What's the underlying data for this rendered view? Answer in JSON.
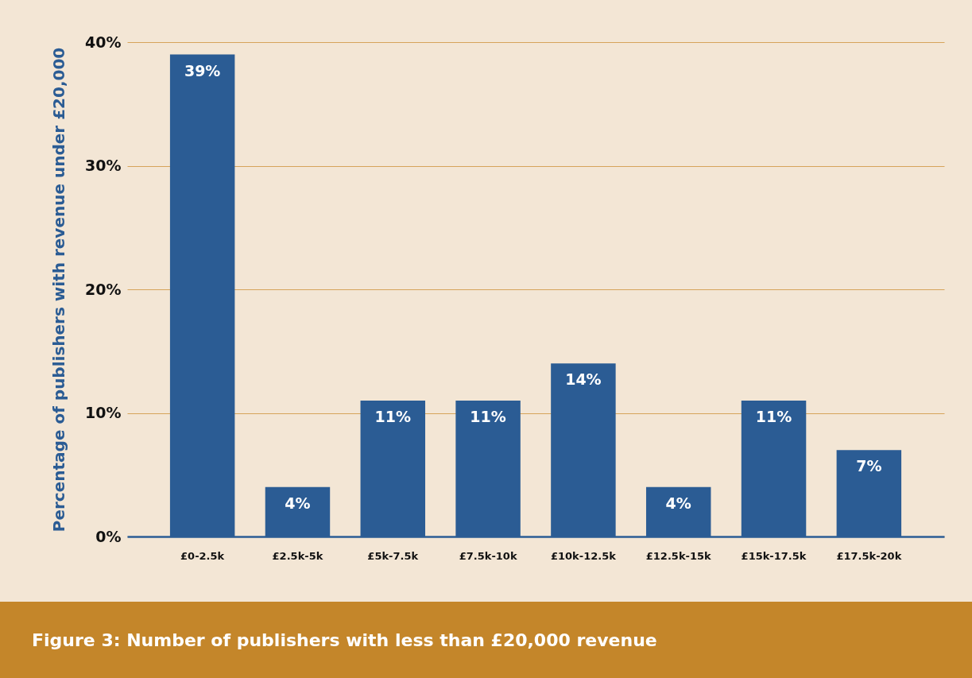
{
  "chart_data": {
    "type": "bar",
    "title": "Figure 3: Number of publishers with less than £20,000 revenue",
    "ylabel": "Percentage of publishers with revenue under £20,000",
    "categories": [
      "£0-2.5k",
      "£2.5k-5k",
      "£5k-7.5k",
      "£7.5k-10k",
      "£10k-12.5k",
      "£12.5k-15k",
      "£15k-17.5k",
      "£17.5k-20k"
    ],
    "values": [
      39,
      4,
      11,
      11,
      14,
      4,
      11,
      7
    ],
    "color": "#2b5c94",
    "value_labels": [
      "39%",
      "4%",
      "11%",
      "11%",
      "14%",
      "4%",
      "11%",
      "7%"
    ],
    "ylim": [
      0,
      40
    ],
    "yticks": [
      {
        "value": 0,
        "label": "0%"
      },
      {
        "value": 10,
        "label": "10%"
      },
      {
        "value": 20,
        "label": "20%"
      },
      {
        "value": 30,
        "label": "30%"
      },
      {
        "value": 40,
        "label": "40%"
      }
    ],
    "grid": "y"
  }
}
